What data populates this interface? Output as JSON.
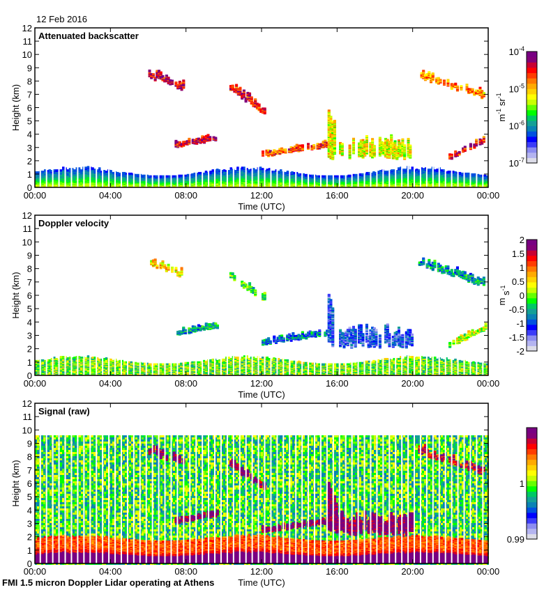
{
  "header": {
    "date": "12 Feb 2016"
  },
  "footer": {
    "caption": "FMI 1.5 micron Doppler Lidar operating at Athens"
  },
  "colors": {
    "colormap": [
      "#dcdce8",
      "#b4b4f0",
      "#8c8cf0",
      "#3c3cf8",
      "#0000ff",
      "#0050e0",
      "#0a82b4",
      "#14a096",
      "#00c864",
      "#00ff00",
      "#64ff00",
      "#c8ff00",
      "#ffff00",
      "#ffd200",
      "#ffaa00",
      "#ff7800",
      "#ff3c00",
      "#ff0000",
      "#c80032",
      "#820078",
      "#780082"
    ]
  },
  "chart_data": [
    {
      "type": "heatmap",
      "title": "Attenuated backscatter",
      "xlabel": "Time (UTC)",
      "ylabel": "Height (km)",
      "xlim": [
        0,
        24
      ],
      "ylim": [
        0,
        12
      ],
      "xticks": [
        "00:00",
        "04:00",
        "08:00",
        "12:00",
        "16:00",
        "20:00",
        "00:00"
      ],
      "yticks": [
        "0",
        "1",
        "2",
        "3",
        "4",
        "5",
        "6",
        "7",
        "8",
        "9",
        "10",
        "11",
        "12"
      ],
      "colorbar": {
        "label": "m-1 sr-1",
        "scale": "log",
        "range": [
          1e-07,
          0.0001
        ],
        "ticks": [
          "10-7",
          "10-6",
          "10-5",
          "10-4"
        ]
      },
      "features": [
        {
          "name": "boundary-layer",
          "t": [
            0,
            24
          ],
          "h_top": [
            0.75,
            1.5
          ],
          "level": 0.25
        },
        {
          "name": "cirrus-early",
          "t": [
            6.0,
            7.8
          ],
          "h": [
            7.5,
            8.4
          ],
          "level": 0.9
        },
        {
          "name": "cirrus-mid",
          "t": [
            10.3,
            12.1
          ],
          "h": [
            5.7,
            7.4
          ],
          "level": 0.85
        },
        {
          "name": "cirrus-late",
          "t": [
            20.3,
            23.8
          ],
          "h": [
            6.8,
            8.4
          ],
          "level": 0.72
        },
        {
          "name": "low-cloud-a",
          "t": [
            7.4,
            9.6
          ],
          "h": [
            2.9,
            3.6
          ],
          "level": 0.9
        },
        {
          "name": "low-cloud-b",
          "t": [
            12.0,
            15.5
          ],
          "h": [
            2.2,
            3.1
          ],
          "level": 0.8
        },
        {
          "name": "thick-cloud",
          "t": [
            15.5,
            20.0
          ],
          "h": [
            2.0,
            5.3
          ],
          "level": 0.6
        },
        {
          "name": "low-cloud-c",
          "t": [
            21.9,
            23.9
          ],
          "h": [
            2.0,
            3.7
          ],
          "level": 0.85
        }
      ]
    },
    {
      "type": "heatmap",
      "title": "Doppler velocity",
      "xlabel": "Time (UTC)",
      "ylabel": "Height (km)",
      "xlim": [
        0,
        24
      ],
      "ylim": [
        0,
        12
      ],
      "xticks": [
        "00:00",
        "04:00",
        "08:00",
        "12:00",
        "16:00",
        "20:00",
        "00:00"
      ],
      "yticks": [
        "0",
        "1",
        "2",
        "3",
        "4",
        "5",
        "6",
        "7",
        "8",
        "9",
        "10",
        "11",
        "12"
      ],
      "colorbar": {
        "label": "m s-1",
        "scale": "linear",
        "range": [
          -2,
          2
        ],
        "ticks": [
          "2",
          "1.5",
          "1",
          "0.5",
          "0",
          "-0.5",
          "-1",
          "-1.5",
          "-2"
        ]
      },
      "features": [
        {
          "name": "boundary-layer",
          "t": [
            0,
            24
          ],
          "h_top": [
            0.75,
            1.4
          ],
          "level": 0.5
        },
        {
          "name": "cirrus-early",
          "t": [
            6.0,
            7.8
          ],
          "h": [
            7.5,
            8.4
          ],
          "level": 0.65
        },
        {
          "name": "cirrus-mid",
          "t": [
            10.3,
            12.1
          ],
          "h": [
            5.7,
            7.4
          ],
          "level": 0.45
        },
        {
          "name": "cirrus-late",
          "t": [
            20.3,
            23.8
          ],
          "h": [
            6.8,
            8.4
          ],
          "level": 0.35
        },
        {
          "name": "low-cloud-a",
          "t": [
            7.4,
            9.6
          ],
          "h": [
            2.9,
            3.6
          ],
          "level": 0.35
        },
        {
          "name": "low-cloud-b",
          "t": [
            12.0,
            15.5
          ],
          "h": [
            2.2,
            3.1
          ],
          "level": 0.3
        },
        {
          "name": "thick-cloud",
          "t": [
            15.5,
            20.0
          ],
          "h": [
            2.0,
            5.3
          ],
          "level": 0.2
        },
        {
          "name": "low-cloud-c",
          "t": [
            21.9,
            23.9
          ],
          "h": [
            2.0,
            3.7
          ],
          "level": 0.55
        }
      ]
    },
    {
      "type": "heatmap",
      "title": "Signal (raw)",
      "xlabel": "Time (UTC)",
      "ylabel": "Height (km)",
      "xlim": [
        0,
        24
      ],
      "ylim": [
        0,
        12
      ],
      "max_range_km": 9.6,
      "xticks": [
        "00:00",
        "04:00",
        "08:00",
        "12:00",
        "16:00",
        "20:00",
        "00:00"
      ],
      "yticks": [
        "0",
        "1",
        "2",
        "3",
        "4",
        "5",
        "6",
        "7",
        "8",
        "9",
        "10",
        "11",
        "12"
      ],
      "colorbar": {
        "label": "",
        "scale": "linear",
        "range": [
          0.99,
          1.01
        ],
        "ticks": [
          "1",
          "0.99"
        ]
      },
      "features": [
        {
          "name": "near-field",
          "t": [
            0,
            24
          ],
          "h_top": [
            0.7,
            1.2
          ],
          "level": 1.0
        },
        {
          "name": "cirrus-early",
          "t": [
            6.0,
            7.8
          ],
          "h": [
            7.5,
            8.4
          ],
          "level": 1.0
        },
        {
          "name": "cirrus-mid",
          "t": [
            10.3,
            12.1
          ],
          "h": [
            5.7,
            7.4
          ],
          "level": 1.0
        },
        {
          "name": "cirrus-late",
          "t": [
            20.3,
            23.8
          ],
          "h": [
            6.8,
            8.4
          ],
          "level": 0.9
        },
        {
          "name": "low-cloud-a",
          "t": [
            7.4,
            9.6
          ],
          "h": [
            2.9,
            3.6
          ],
          "level": 1.0
        },
        {
          "name": "low-cloud-b",
          "t": [
            12.0,
            15.5
          ],
          "h": [
            2.2,
            3.1
          ],
          "level": 1.0
        },
        {
          "name": "thick-cloud",
          "t": [
            15.5,
            20.0
          ],
          "h": [
            2.0,
            5.3
          ],
          "level": 1.0
        }
      ]
    }
  ]
}
